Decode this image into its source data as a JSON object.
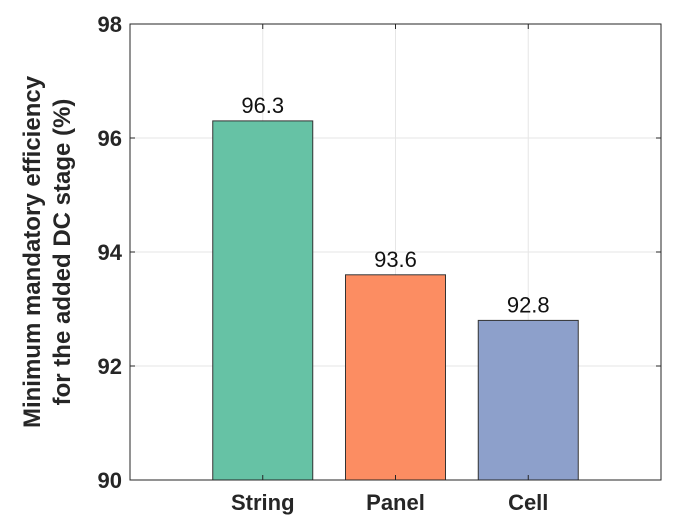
{
  "chart_data": {
    "type": "bar",
    "categories": [
      "String",
      "Panel",
      "Cell"
    ],
    "values": [
      96.3,
      93.6,
      92.8
    ],
    "data_labels": [
      "96.3",
      "93.6",
      "92.8"
    ],
    "bar_colors": [
      "#66c2a5",
      "#fc8d62",
      "#8da0cb"
    ],
    "ylabel_lines": [
      "Minimum mandatory efficiency",
      "for the added DC stage (%)"
    ],
    "xlabel": "",
    "ylim": [
      90,
      98
    ],
    "yticks": [
      90,
      92,
      94,
      96,
      98
    ],
    "ytick_labels": [
      "90",
      "92",
      "94",
      "96",
      "98"
    ],
    "grid": true,
    "box": true
  }
}
